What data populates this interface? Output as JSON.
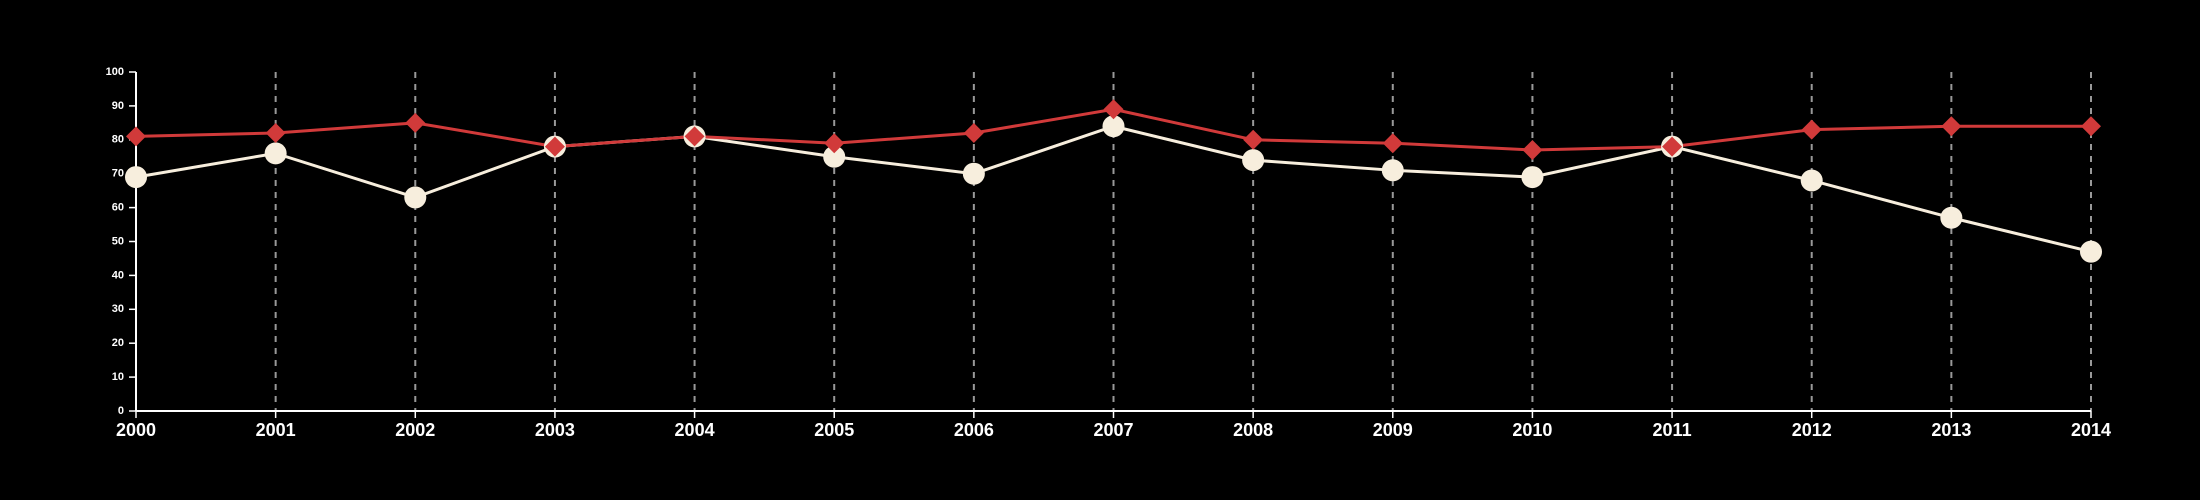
{
  "chart_data": {
    "type": "line",
    "x": [
      2000,
      2001,
      2002,
      2003,
      2004,
      2005,
      2006,
      2007,
      2008,
      2009,
      2010,
      2011,
      2012,
      2013,
      2014
    ],
    "series": [
      {
        "color": "#f7eedd",
        "marker": "circle",
        "values": [
          69,
          76,
          63,
          78,
          81,
          75,
          70,
          84,
          74,
          71,
          69,
          78,
          68,
          57,
          47
        ]
      },
      {
        "color": "#d13a3a",
        "marker": "diamond",
        "values": [
          81,
          82,
          85,
          78,
          81,
          79,
          82,
          89,
          80,
          79,
          77,
          78,
          83,
          84,
          84
        ]
      }
    ],
    "xlim": [
      2000,
      2014
    ],
    "xticks": [
      2000,
      2001,
      2002,
      2003,
      2004,
      2005,
      2006,
      2007,
      2008,
      2009,
      2010,
      2011,
      2012,
      2013,
      2014
    ],
    "ylim": [
      0,
      100
    ],
    "yticks": [
      0,
      10,
      20,
      30,
      40,
      50,
      60,
      70,
      80,
      90,
      100
    ],
    "xgrid": true
  }
}
